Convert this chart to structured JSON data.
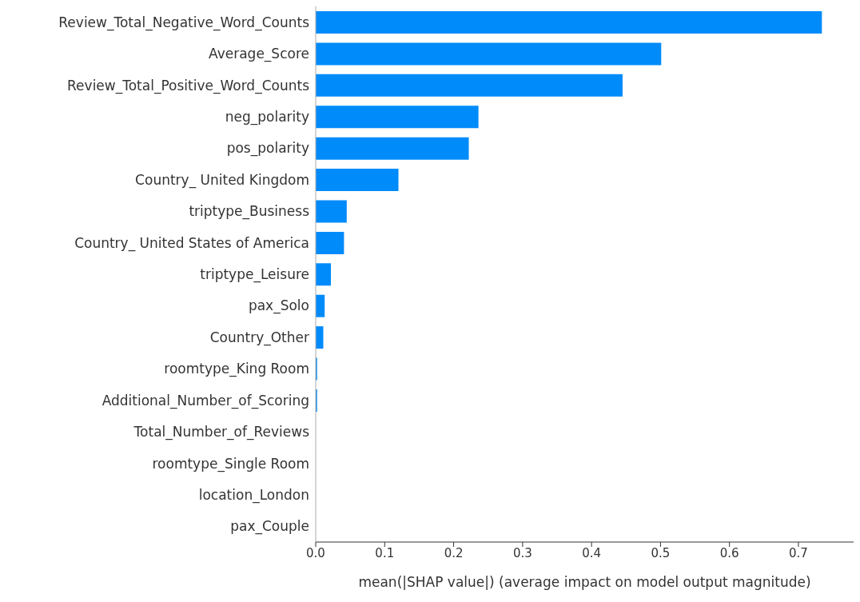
{
  "chart_data": {
    "type": "bar",
    "orientation": "horizontal",
    "xlabel": "mean(|SHAP value|) (average impact on model output magnitude)",
    "categories": [
      "Review_Total_Negative_Word_Counts",
      "Average_Score",
      "Review_Total_Positive_Word_Counts",
      "neg_polarity",
      "pos_polarity",
      "Country_ United Kingdom",
      "triptype_Business",
      "Country_ United States of America",
      "triptype_Leisure",
      "pax_Solo",
      "Country_Other",
      "roomtype_King Room",
      "Additional_Number_of_Scoring",
      "Total_Number_of_Reviews",
      "roomtype_Single Room",
      "location_London",
      "pax_Couple"
    ],
    "values": [
      0.734,
      0.501,
      0.445,
      0.236,
      0.222,
      0.12,
      0.045,
      0.041,
      0.022,
      0.013,
      0.011,
      0.002,
      0.002,
      0,
      0,
      0,
      0
    ],
    "color": "#008bfb",
    "xlim": [
      0,
      0.78
    ],
    "xticks": [
      {
        "value": 0,
        "label": "0.0"
      },
      0.1,
      0.2,
      0.3,
      0.4,
      0.5,
      0.6,
      0.7
    ],
    "grid": false,
    "legend": false
  }
}
